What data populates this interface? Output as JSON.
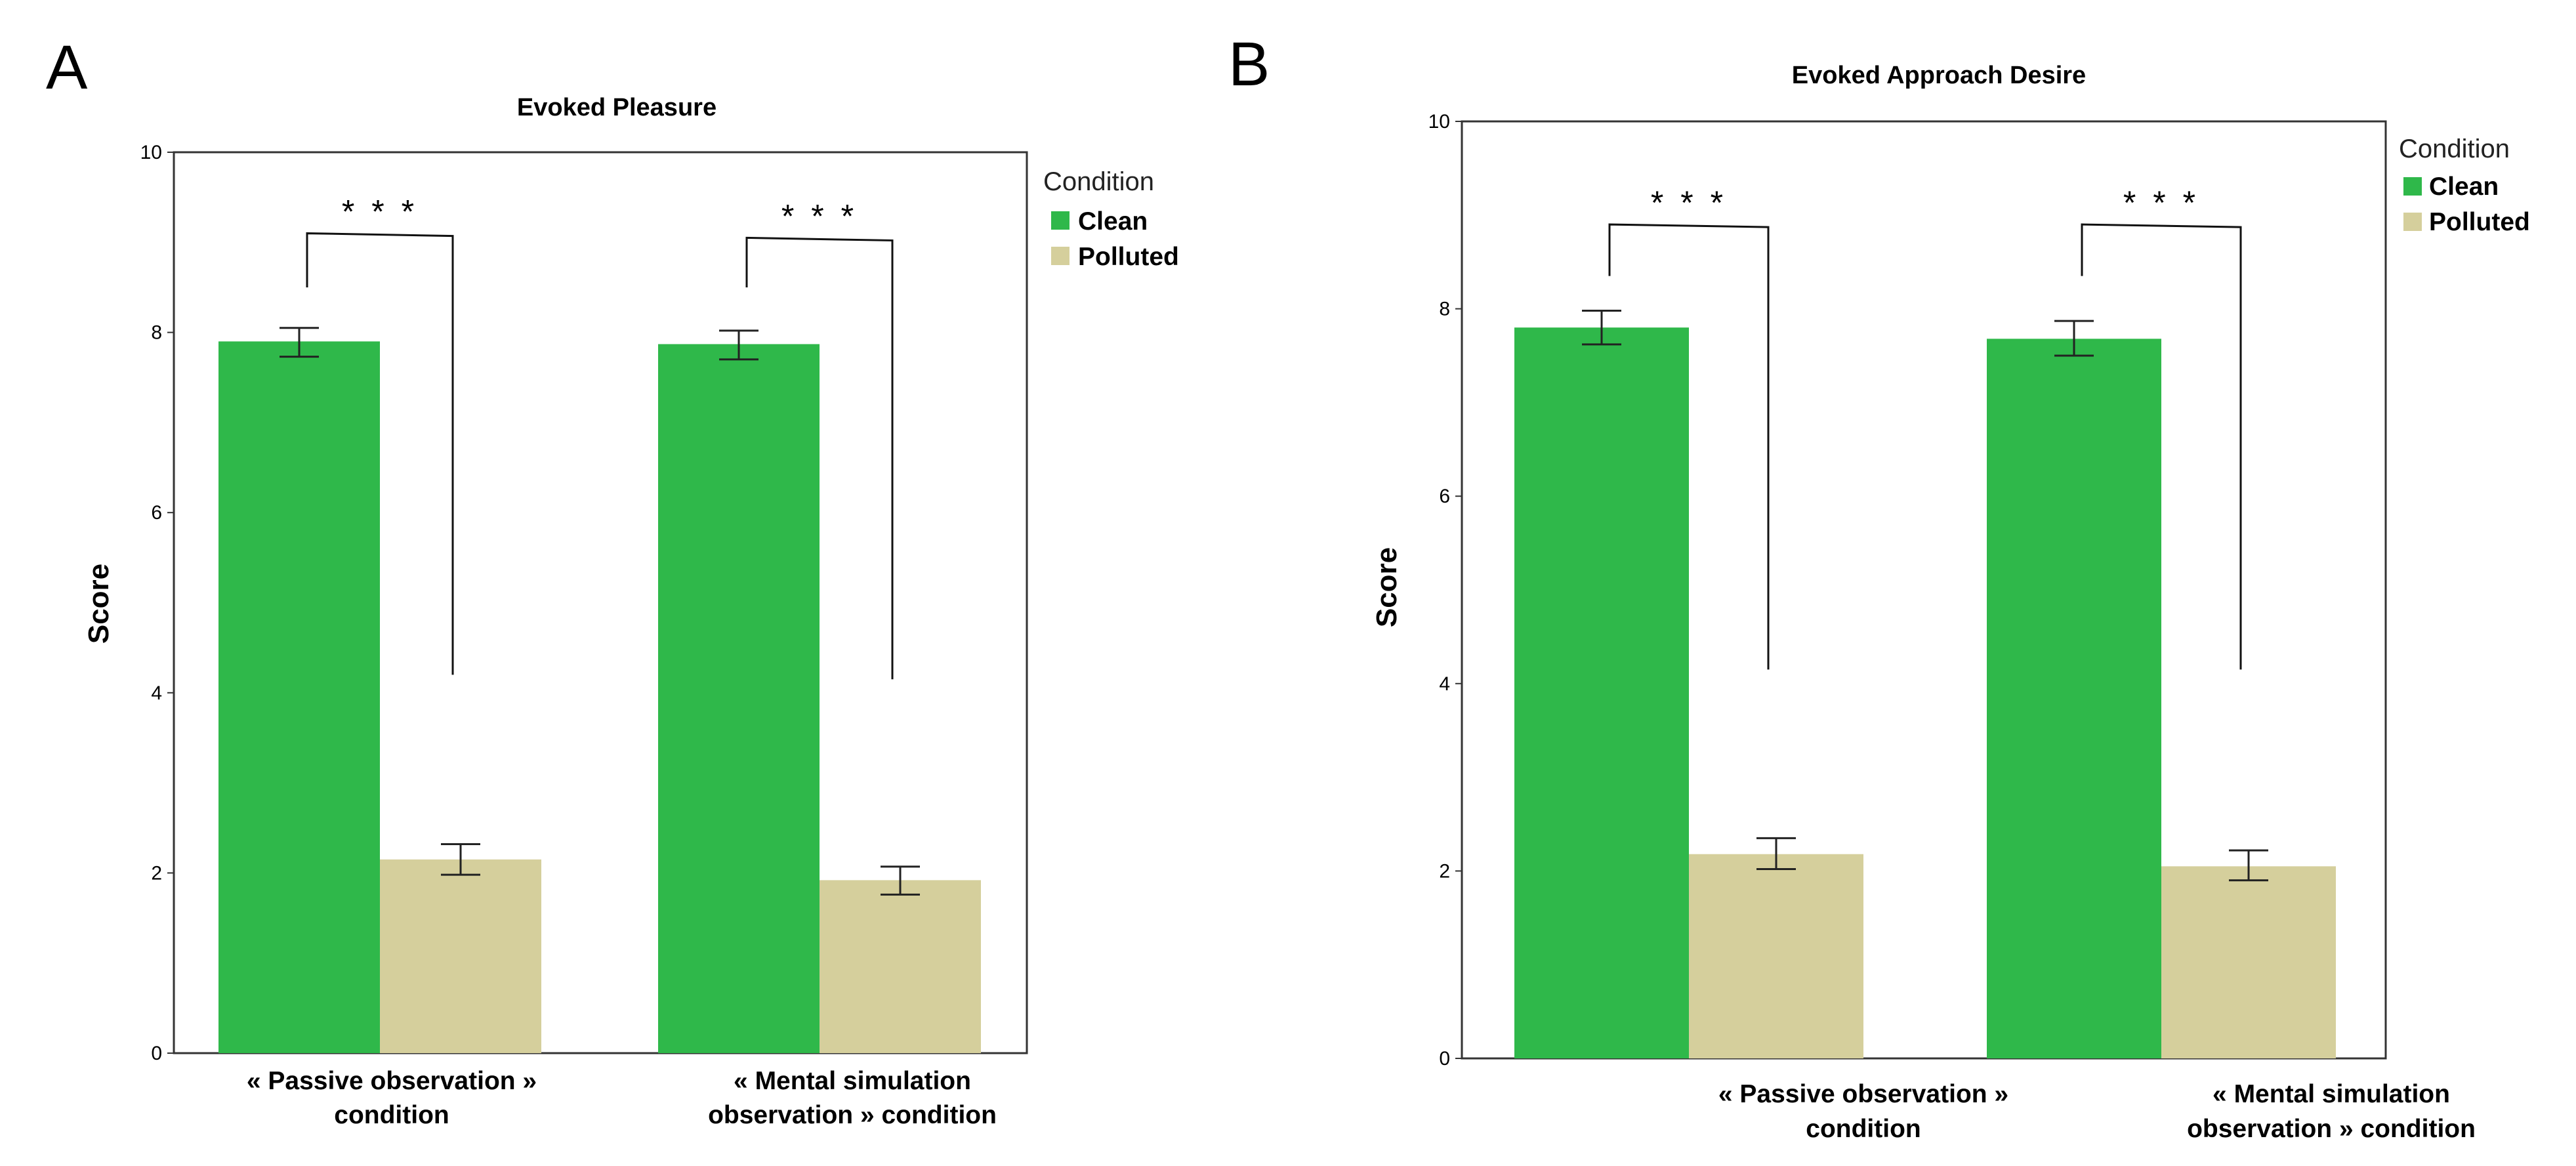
{
  "colors": {
    "clean": "#2fb84a",
    "polluted": "#d5cf9c",
    "axis": "#333333",
    "errorbar": "#222222"
  },
  "chart_data": [
    {
      "panel": "A",
      "type": "bar",
      "title": "Evoked Pleasure",
      "xlabel": "",
      "ylabel": "Score",
      "ylim": [
        0,
        10
      ],
      "yticks": [
        "0",
        "2",
        "4",
        "6",
        "8",
        "10"
      ],
      "categories": [
        [
          "« Passive observation »",
          "condition"
        ],
        [
          "« Mental simulation",
          "observation » condition"
        ]
      ],
      "legend": {
        "title": "Condition",
        "position": "right",
        "entries": [
          "Clean",
          "Polluted"
        ]
      },
      "series": [
        {
          "name": "Clean",
          "values": [
            7.9,
            7.87
          ],
          "error_low": [
            7.73,
            7.7
          ],
          "error_high": [
            8.05,
            8.02
          ]
        },
        {
          "name": "Polluted",
          "values": [
            2.15,
            1.92
          ],
          "error_low": [
            1.98,
            1.76
          ],
          "error_high": [
            2.32,
            2.07
          ]
        }
      ],
      "significance": [
        {
          "category_index": 0,
          "label": "* * *",
          "bracket_top": 9.1,
          "left_end": 8.5,
          "right_end": 4.2
        },
        {
          "category_index": 1,
          "label": "* * *",
          "bracket_top": 9.05,
          "left_end": 8.5,
          "right_end": 4.15
        }
      ]
    },
    {
      "panel": "B",
      "type": "bar",
      "title": "Evoked Approach Desire",
      "xlabel": "",
      "ylabel": "Score",
      "ylim": [
        0,
        10
      ],
      "yticks": [
        "0",
        "2",
        "4",
        "6",
        "8",
        "10"
      ],
      "categories": [
        [
          "« Passive observation »",
          "condition"
        ],
        [
          "« Mental simulation",
          "observation » condition"
        ]
      ],
      "legend": {
        "title": "Condition",
        "position": "right",
        "entries": [
          "Clean",
          "Polluted"
        ]
      },
      "series": [
        {
          "name": "Clean",
          "values": [
            7.8,
            7.68
          ],
          "error_low": [
            7.62,
            7.5
          ],
          "error_high": [
            7.98,
            7.87
          ]
        },
        {
          "name": "Polluted",
          "values": [
            2.18,
            2.05
          ],
          "error_low": [
            2.02,
            1.9
          ],
          "error_high": [
            2.35,
            2.22
          ]
        }
      ],
      "significance": [
        {
          "category_index": 0,
          "label": "* * *",
          "bracket_top": 8.9,
          "left_end": 8.35,
          "right_end": 4.15
        },
        {
          "category_index": 1,
          "label": "* * *",
          "bracket_top": 8.9,
          "left_end": 8.35,
          "right_end": 4.15
        }
      ]
    }
  ]
}
